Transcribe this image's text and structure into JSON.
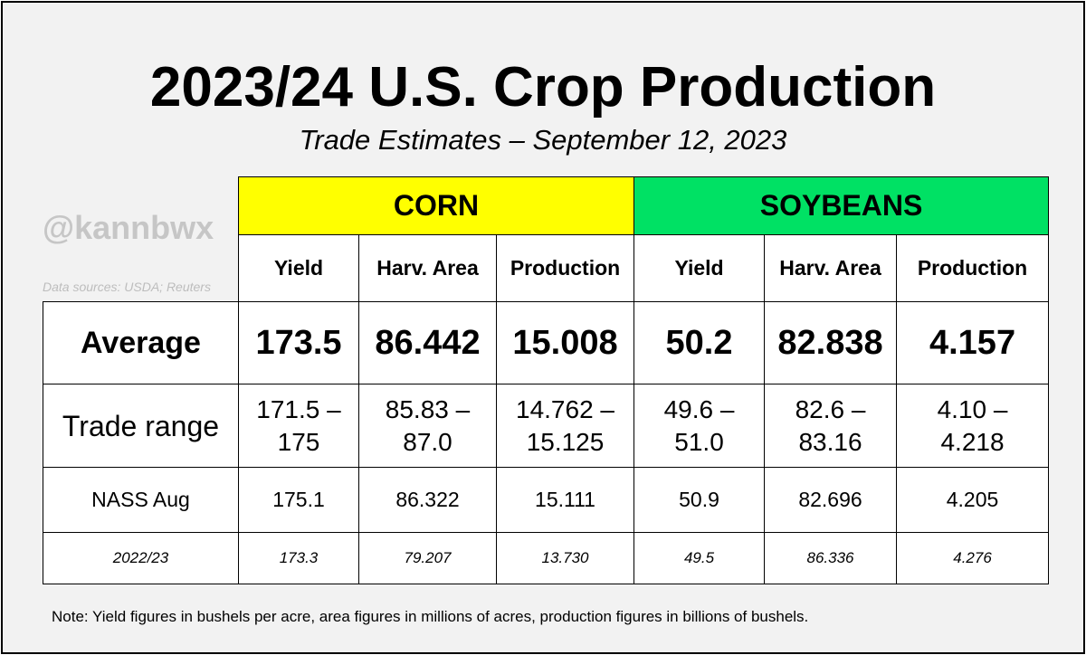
{
  "header": {
    "title": "2023/24 U.S. Crop Production",
    "subtitle": "Trade Estimates – September 12, 2023",
    "watermark": "@kannbwx",
    "sources": "Data sources: USDA; Reuters"
  },
  "colors": {
    "corn": "#ffff00",
    "soybeans": "#00e164"
  },
  "chart_data": {
    "type": "table",
    "title": "2023/24 U.S. Crop Production",
    "subtitle": "Trade Estimates – September 12, 2023",
    "groups": [
      "CORN",
      "SOYBEANS"
    ],
    "columns": [
      "Yield",
      "Harv. Area",
      "Production",
      "Yield",
      "Harv. Area",
      "Production"
    ],
    "rows": [
      {
        "label": "Average",
        "values": [
          "173.5",
          "86.442",
          "15.008",
          "50.2",
          "82.838",
          "4.157"
        ]
      },
      {
        "label": "Trade range",
        "values": [
          [
            "171.5 –",
            "175"
          ],
          [
            "85.83 –",
            "87.0"
          ],
          [
            "14.762 –",
            "15.125"
          ],
          [
            "49.6 –",
            "51.0"
          ],
          [
            "82.6 –",
            "83.16"
          ],
          [
            "4.10 –",
            "4.218"
          ]
        ]
      },
      {
        "label": "NASS Aug",
        "values": [
          "175.1",
          "86.322",
          "15.111",
          "50.9",
          "82.696",
          "4.205"
        ]
      },
      {
        "label": "2022/23",
        "values": [
          "173.3",
          "79.207",
          "13.730",
          "49.5",
          "86.336",
          "4.276"
        ]
      }
    ]
  },
  "footer": {
    "note": "Note: Yield figures in bushels per acre, area figures in millions of acres, production figures in billions of bushels."
  }
}
